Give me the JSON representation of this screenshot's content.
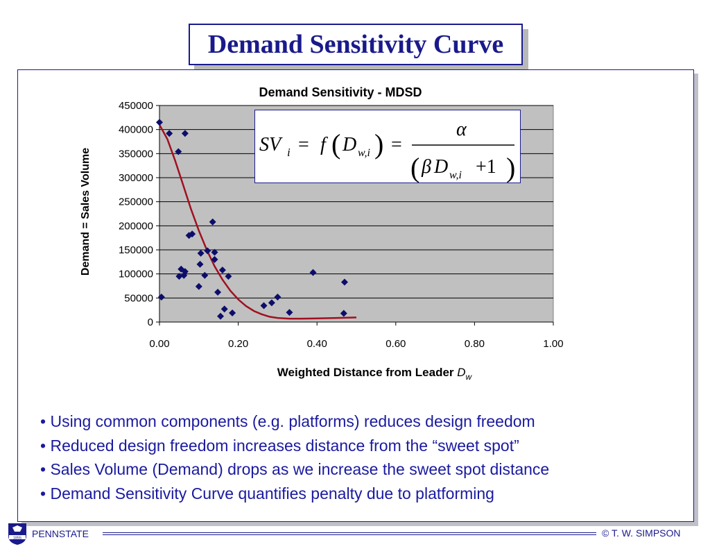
{
  "slide": {
    "title": "Demand Sensitivity Curve",
    "bullets": [
      "Using common components (e.g. platforms) reduces design freedom",
      "Reduced design freedom increases distance from the “sweet spot”",
      "Sales Volume (Demand) drops as we increase the sweet spot distance",
      "Demand Sensitivity Curve quantifies penalty due to platforming"
    ],
    "footer_left": "PENNSTATE",
    "footer_right": "© T. W. SIMPSON",
    "logo_digits": "1855"
  },
  "formula": {
    "lhs_sym": "SV",
    "lhs_sub": "i",
    "eq": "=",
    "f": "f",
    "d": "D",
    "d_sub": "w,i",
    "alpha": "α",
    "beta": "β",
    "plus_one": "+1"
  },
  "colors": {
    "accent": "#1a1a8c",
    "marker": "#0d0d6b",
    "curve": "#a01020",
    "plot_bg": "#c0c0c0"
  },
  "chart_data": {
    "type": "scatter",
    "title": "Demand Sensitivity - MDSD",
    "xlabel": "Weighted Distance from Leader ",
    "xlabel_var": "D",
    "xlabel_sub": "w",
    "ylabel": "Demand = Sales Volume",
    "xlim": [
      0,
      1
    ],
    "ylim": [
      0,
      450000
    ],
    "x_ticks": [
      "0.00",
      "0.20",
      "0.40",
      "0.60",
      "0.80",
      "1.00"
    ],
    "y_ticks": [
      "0",
      "50000",
      "100000",
      "150000",
      "200000",
      "250000",
      "300000",
      "350000",
      "400000",
      "450000"
    ],
    "grid": "horizontal",
    "legend": "none",
    "series": [
      {
        "marker": "diamond",
        "points": [
          [
            0.0,
            415000
          ],
          [
            0.005,
            52000
          ],
          [
            0.025,
            392000
          ],
          [
            0.065,
            392000
          ],
          [
            0.048,
            354000
          ],
          [
            0.075,
            180000
          ],
          [
            0.083,
            183000
          ],
          [
            0.135,
            208000
          ],
          [
            0.105,
            143000
          ],
          [
            0.122,
            148000
          ],
          [
            0.14,
            145000
          ],
          [
            0.14,
            130000
          ],
          [
            0.103,
            120000
          ],
          [
            0.055,
            110000
          ],
          [
            0.065,
            105000
          ],
          [
            0.05,
            95000
          ],
          [
            0.062,
            97000
          ],
          [
            0.115,
            97000
          ],
          [
            0.16,
            108000
          ],
          [
            0.175,
            95000
          ],
          [
            0.1,
            74000
          ],
          [
            0.148,
            62000
          ],
          [
            0.165,
            27000
          ],
          [
            0.185,
            19000
          ],
          [
            0.155,
            12000
          ],
          [
            0.265,
            34000
          ],
          [
            0.285,
            40000
          ],
          [
            0.3,
            52000
          ],
          [
            0.33,
            20000
          ],
          [
            0.39,
            103000
          ],
          [
            0.47,
            83000
          ],
          [
            0.468,
            18000
          ]
        ]
      },
      {
        "name": "fit",
        "line": true,
        "points": [
          [
            0.0,
            410000
          ],
          [
            0.02,
            380000
          ],
          [
            0.04,
            335000
          ],
          [
            0.06,
            285000
          ],
          [
            0.08,
            235000
          ],
          [
            0.1,
            190000
          ],
          [
            0.12,
            150000
          ],
          [
            0.14,
            116000
          ],
          [
            0.16,
            88000
          ],
          [
            0.18,
            65000
          ],
          [
            0.2,
            47000
          ],
          [
            0.22,
            33000
          ],
          [
            0.24,
            23000
          ],
          [
            0.26,
            16000
          ],
          [
            0.28,
            11000
          ],
          [
            0.3,
            8500
          ],
          [
            0.33,
            7000
          ],
          [
            0.36,
            7000
          ],
          [
            0.4,
            7500
          ],
          [
            0.45,
            8500
          ],
          [
            0.5,
            9500
          ]
        ]
      }
    ]
  }
}
